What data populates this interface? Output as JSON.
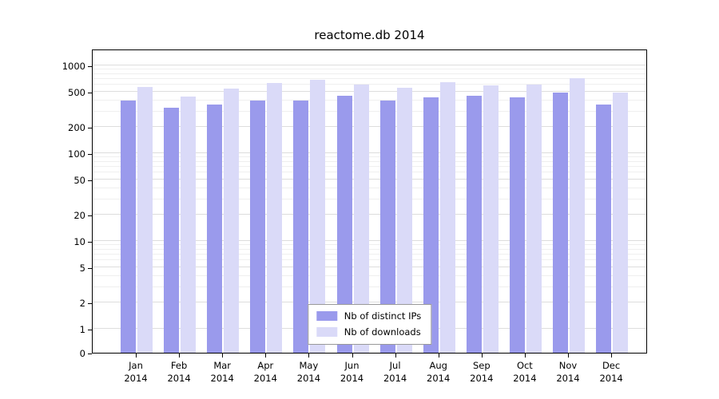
{
  "chart_data": {
    "type": "bar",
    "title": "reactome.db 2014",
    "categories": [
      "Jan",
      "Feb",
      "Mar",
      "Apr",
      "May",
      "Jun",
      "Jul",
      "Aug",
      "Sep",
      "Oct",
      "Nov",
      "Dec"
    ],
    "year_label": "2014",
    "series": [
      {
        "name": "Nb of distinct IPs",
        "color": "#9a9aec",
        "values": [
          400,
          330,
          360,
          400,
          400,
          450,
          400,
          430,
          450,
          430,
          490,
          360
        ]
      },
      {
        "name": "Nb of downloads",
        "color": "#dadaf8",
        "values": [
          570,
          440,
          540,
          630,
          690,
          610,
          560,
          650,
          590,
          610,
          720,
          490
        ]
      }
    ],
    "yscale": "log",
    "yticks": [
      0,
      1,
      2,
      5,
      10,
      20,
      50,
      100,
      200,
      500,
      1000
    ],
    "ylim": [
      0,
      1300
    ],
    "grid": true,
    "legend_position": "bottom-center-inside"
  },
  "colors": {
    "axis": "#000000",
    "grid_minor": "#efefef",
    "grid_major": "#dddddd",
    "background": "#ffffff"
  }
}
